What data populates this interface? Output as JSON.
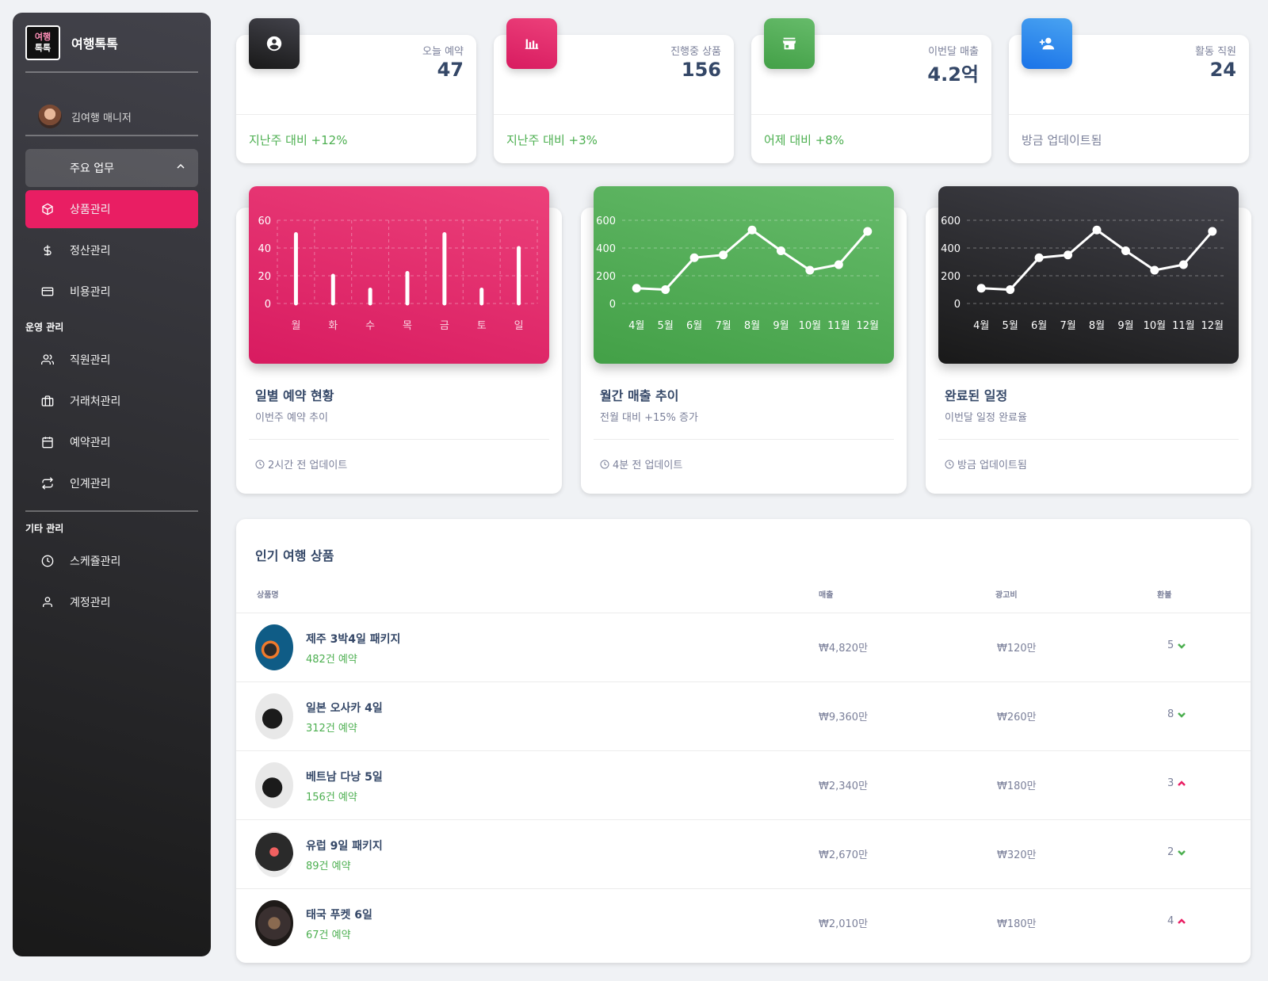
{
  "brand": {
    "logo_line1": "여행",
    "logo_line2": "톡톡",
    "name": "여행톡톡"
  },
  "user": {
    "name": "김여행 매니저"
  },
  "sidebar": {
    "group_label": "주요 업무",
    "main_items": [
      {
        "label": "상품관리",
        "icon": "cube-icon",
        "active": true
      },
      {
        "label": "정산관리",
        "icon": "dollar-icon"
      },
      {
        "label": "비용관리",
        "icon": "credit-card-icon"
      }
    ],
    "section_ops": "운영 관리",
    "ops_items": [
      {
        "label": "직원관리",
        "icon": "users-icon"
      },
      {
        "label": "거래처관리",
        "icon": "briefcase-icon"
      },
      {
        "label": "예약관리",
        "icon": "calendar-icon"
      },
      {
        "label": "인계관리",
        "icon": "repeat-icon"
      }
    ],
    "section_etc": "기타 관리",
    "etc_items": [
      {
        "label": "스케쥴관리",
        "icon": "clock-icon"
      },
      {
        "label": "계정관리",
        "icon": "user-icon"
      }
    ]
  },
  "stats": [
    {
      "label": "오늘 예약",
      "value": "47",
      "footer": "지난주 대비 +12%",
      "icon": "account-circle-icon",
      "color": "#333333"
    },
    {
      "label": "진행중 상품",
      "value": "156",
      "footer": "지난주 대비 +3%",
      "icon": "bar-chart-icon",
      "color": "#e91e63"
    },
    {
      "label": "이번달 매출",
      "value": "4.2억",
      "footer": "어제 대비 +8%",
      "icon": "store-icon",
      "color": "#4caf50"
    },
    {
      "label": "활동 직원",
      "value": "24",
      "footer": "방금 업데이트됨",
      "icon": "person-add-icon",
      "color": "#1a73e8"
    }
  ],
  "chart_cards": [
    {
      "title": "일별 예약 현황",
      "subtitle": "이번주 예약 추이",
      "footer": "2시간 전 업데이트"
    },
    {
      "title": "월간 매출 추이",
      "subtitle": "전월 대비 +15% 증가",
      "footer": "4분 전 업데이트"
    },
    {
      "title": "완료된 일정",
      "subtitle": "이번달 일정 완료율",
      "footer": "방금 업데이트됨"
    }
  ],
  "chart_data": [
    {
      "type": "bar",
      "categories": [
        "월",
        "화",
        "수",
        "목",
        "금",
        "토",
        "일"
      ],
      "values": [
        50,
        20,
        10,
        22,
        50,
        10,
        40
      ],
      "ylim": [
        0,
        60
      ],
      "yticks": [
        "0",
        "20",
        "40",
        "60"
      ],
      "grid": true
    },
    {
      "type": "line",
      "categories": [
        "4월",
        "5월",
        "6월",
        "7월",
        "8월",
        "9월",
        "10월",
        "11월",
        "12월"
      ],
      "values": [
        110,
        100,
        330,
        350,
        530,
        380,
        240,
        280,
        520
      ],
      "ylim": [
        0,
        600
      ],
      "yticks": [
        "0",
        "200",
        "400",
        "600"
      ],
      "grid": true
    },
    {
      "type": "line",
      "categories": [
        "4월",
        "5월",
        "6월",
        "7월",
        "8월",
        "9월",
        "10월",
        "11월",
        "12월"
      ],
      "values": [
        110,
        100,
        330,
        350,
        530,
        380,
        240,
        280,
        520
      ],
      "ylim": [
        0,
        600
      ],
      "yticks": [
        "0",
        "200",
        "400",
        "600"
      ],
      "grid": true
    }
  ],
  "table": {
    "title": "인기 여행 상품",
    "headers": {
      "name": "상품명",
      "sales": "매출",
      "ad": "광고비",
      "refund": "환불"
    },
    "rows": [
      {
        "name": "제주 3박4일 패키지",
        "count": "482건 예약",
        "sales": "₩4,820만",
        "ad": "₩120만",
        "refund": "5",
        "trend": "down"
      },
      {
        "name": "일본 오사카 4일",
        "count": "312건 예약",
        "sales": "₩9,360만",
        "ad": "₩260만",
        "refund": "8",
        "trend": "down"
      },
      {
        "name": "베트남 다낭 5일",
        "count": "156건 예약",
        "sales": "₩2,340만",
        "ad": "₩180만",
        "refund": "3",
        "trend": "up"
      },
      {
        "name": "유럽 9일 패키지",
        "count": "89건 예약",
        "sales": "₩2,670만",
        "ad": "₩320만",
        "refund": "2",
        "trend": "down"
      },
      {
        "name": "태국 푸켓 6일",
        "count": "67건 예약",
        "sales": "₩2,010만",
        "ad": "₩180만",
        "refund": "4",
        "trend": "up"
      }
    ]
  }
}
